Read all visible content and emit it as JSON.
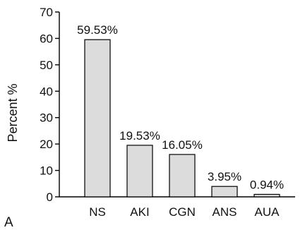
{
  "panel_label": "A",
  "chart_data": {
    "type": "bar",
    "title": "",
    "xlabel": "",
    "ylabel": "Percent %",
    "ylim": [
      0,
      70
    ],
    "yticks": [
      0,
      10,
      20,
      30,
      40,
      50,
      60,
      70
    ],
    "categories": [
      "NS",
      "AKI",
      "CGN",
      "ANS",
      "AUA"
    ],
    "values": [
      59.53,
      19.53,
      16.05,
      3.95,
      0.94
    ],
    "data_labels": [
      "59.53%",
      "19.53%",
      "16.05%",
      "3.95%",
      "0.94%"
    ],
    "bar_color": "#dcdcdc",
    "grid": false,
    "legend": "none"
  }
}
